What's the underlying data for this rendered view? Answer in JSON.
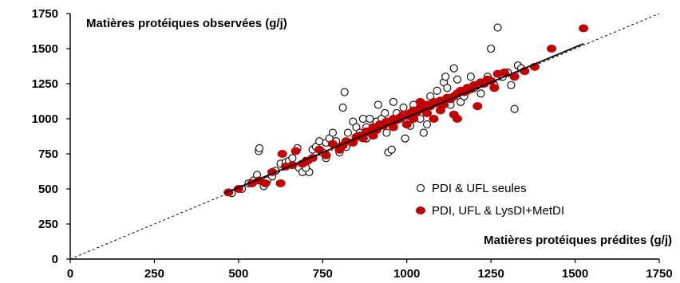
{
  "chart_data": {
    "type": "scatter",
    "title": "",
    "ylabel": "Matières protéiques observées (g/j)",
    "xlabel": "Matières  protéiques  prédites (g/j)",
    "xlim": [
      0,
      1750
    ],
    "ylim": [
      0,
      1750
    ],
    "xticks": [
      "0",
      "250",
      "500",
      "750",
      "1000",
      "1250",
      "1500",
      "1750"
    ],
    "yticks": [
      "0",
      "250",
      "500",
      "750",
      "1000",
      "1250",
      "1500",
      "1750"
    ],
    "grid": false,
    "legend_position": "bottom-right",
    "reference_line": {
      "style": "dashed",
      "from": [
        0,
        0
      ],
      "to": [
        1750,
        1750
      ]
    },
    "regression_line": {
      "style": "solid",
      "from": [
        460,
        470
      ],
      "to": [
        1525,
        1535
      ]
    },
    "series": [
      {
        "name": "PDI & UFL seules",
        "marker": "open-circle",
        "color": "#000000",
        "points": [
          [
            480,
            470
          ],
          [
            510,
            500
          ],
          [
            530,
            540
          ],
          [
            545,
            560
          ],
          [
            555,
            600
          ],
          [
            560,
            770
          ],
          [
            562,
            790
          ],
          [
            575,
            520
          ],
          [
            585,
            560
          ],
          [
            600,
            590
          ],
          [
            610,
            630
          ],
          [
            625,
            680
          ],
          [
            640,
            690
          ],
          [
            650,
            700
          ],
          [
            660,
            720
          ],
          [
            675,
            790
          ],
          [
            680,
            650
          ],
          [
            690,
            620
          ],
          [
            700,
            700
          ],
          [
            710,
            620
          ],
          [
            720,
            780
          ],
          [
            730,
            800
          ],
          [
            740,
            840
          ],
          [
            750,
            760
          ],
          [
            760,
            830
          ],
          [
            770,
            860
          ],
          [
            780,
            900
          ],
          [
            790,
            840
          ],
          [
            800,
            760
          ],
          [
            810,
            1080
          ],
          [
            815,
            1190
          ],
          [
            825,
            900
          ],
          [
            840,
            980
          ],
          [
            850,
            940
          ],
          [
            860,
            900
          ],
          [
            870,
            1000
          ],
          [
            880,
            860
          ],
          [
            890,
            1000
          ],
          [
            900,
            940
          ],
          [
            910,
            980
          ],
          [
            915,
            1100
          ],
          [
            925,
            1000
          ],
          [
            935,
            1040
          ],
          [
            945,
            760
          ],
          [
            955,
            780
          ],
          [
            960,
            1120
          ],
          [
            970,
            1040
          ],
          [
            980,
            1000
          ],
          [
            990,
            1080
          ],
          [
            995,
            860
          ],
          [
            1000,
            1000
          ],
          [
            1010,
            950
          ],
          [
            1020,
            1100
          ],
          [
            1030,
            1060
          ],
          [
            1040,
            1000
          ],
          [
            1050,
            900
          ],
          [
            1060,
            960
          ],
          [
            1070,
            1160
          ],
          [
            1080,
            1120
          ],
          [
            1090,
            1200
          ],
          [
            1100,
            1060
          ],
          [
            1110,
            1260
          ],
          [
            1115,
            1300
          ],
          [
            1120,
            1220
          ],
          [
            1130,
            1100
          ],
          [
            1140,
            1360
          ],
          [
            1150,
            1280
          ],
          [
            1160,
            1120
          ],
          [
            1170,
            1160
          ],
          [
            1180,
            1200
          ],
          [
            1190,
            1300
          ],
          [
            1200,
            1220
          ],
          [
            1210,
            1240
          ],
          [
            1220,
            1180
          ],
          [
            1230,
            1260
          ],
          [
            1240,
            1300
          ],
          [
            1250,
            1500
          ],
          [
            1260,
            1240
          ],
          [
            1270,
            1650
          ],
          [
            1285,
            1300
          ],
          [
            1300,
            1330
          ],
          [
            1310,
            1240
          ],
          [
            1320,
            1070
          ],
          [
            1330,
            1380
          ],
          [
            1340,
            1360
          ],
          [
            700,
            650
          ],
          [
            760,
            720
          ],
          [
            820,
            800
          ],
          [
            880,
            940
          ],
          [
            940,
            900
          ]
        ]
      },
      {
        "name": "PDI, UFL & LysDI+MetDI",
        "marker": "filled-circle",
        "color": "#c00000",
        "points": [
          [
            470,
            475
          ],
          [
            500,
            500
          ],
          [
            540,
            540
          ],
          [
            560,
            560
          ],
          [
            580,
            540
          ],
          [
            600,
            620
          ],
          [
            625,
            540
          ],
          [
            630,
            750
          ],
          [
            640,
            660
          ],
          [
            660,
            670
          ],
          [
            670,
            770
          ],
          [
            690,
            680
          ],
          [
            705,
            700
          ],
          [
            720,
            720
          ],
          [
            740,
            780
          ],
          [
            760,
            740
          ],
          [
            780,
            820
          ],
          [
            800,
            780
          ],
          [
            810,
            810
          ],
          [
            820,
            840
          ],
          [
            840,
            830
          ],
          [
            850,
            870
          ],
          [
            860,
            880
          ],
          [
            870,
            860
          ],
          [
            880,
            910
          ],
          [
            890,
            900
          ],
          [
            900,
            940
          ],
          [
            910,
            920
          ],
          [
            920,
            960
          ],
          [
            930,
            950
          ],
          [
            940,
            980
          ],
          [
            950,
            970
          ],
          [
            960,
            1000
          ],
          [
            970,
            990
          ],
          [
            980,
            1010
          ],
          [
            990,
            1030
          ],
          [
            1000,
            1020
          ],
          [
            1010,
            1040
          ],
          [
            1020,
            1060
          ],
          [
            1030,
            1050
          ],
          [
            1040,
            1080
          ],
          [
            1050,
            1070
          ],
          [
            1060,
            1100
          ],
          [
            1070,
            1090
          ],
          [
            1080,
            1120
          ],
          [
            1090,
            1110
          ],
          [
            1100,
            1130
          ],
          [
            1110,
            1100
          ],
          [
            1120,
            1150
          ],
          [
            1130,
            1140
          ],
          [
            1140,
            1160
          ],
          [
            1150,
            1180
          ],
          [
            1160,
            1200
          ],
          [
            1170,
            1190
          ],
          [
            1180,
            1220
          ],
          [
            1190,
            1210
          ],
          [
            1200,
            1240
          ],
          [
            1210,
            1090
          ],
          [
            1220,
            1260
          ],
          [
            1230,
            1250
          ],
          [
            1240,
            1280
          ],
          [
            1250,
            1270
          ],
          [
            1260,
            1220
          ],
          [
            1270,
            1320
          ],
          [
            1290,
            1330
          ],
          [
            1320,
            1300
          ],
          [
            1350,
            1340
          ],
          [
            1380,
            1370
          ],
          [
            1430,
            1500
          ],
          [
            1525,
            1645
          ],
          [
            1000,
            960
          ],
          [
            1020,
            1000
          ],
          [
            1040,
            1120
          ],
          [
            1060,
            1040
          ],
          [
            1080,
            1000
          ],
          [
            1100,
            1060
          ],
          [
            1140,
            1030
          ],
          [
            1150,
            1000
          ],
          [
            960,
            940
          ],
          [
            900,
            880
          ]
        ]
      }
    ]
  }
}
